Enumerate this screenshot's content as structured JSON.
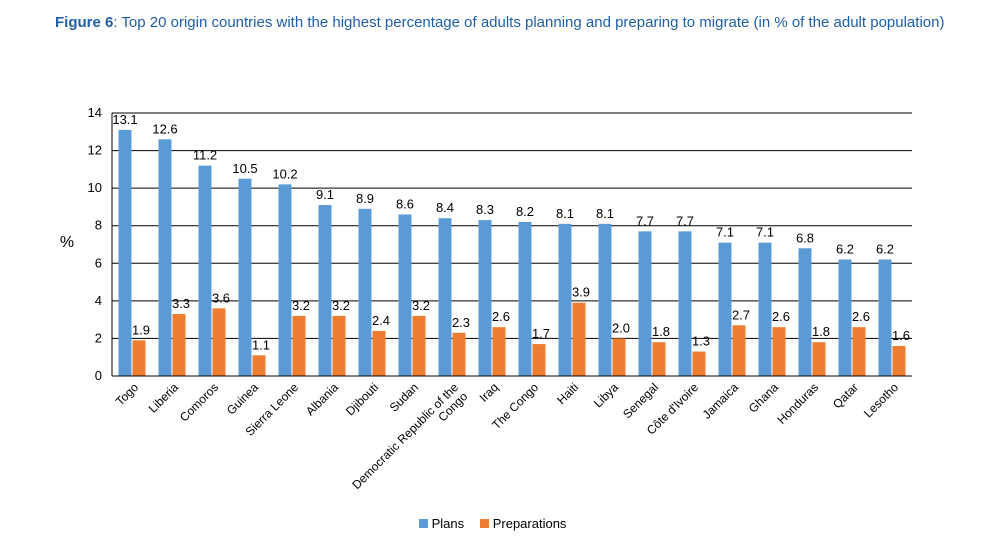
{
  "caption": {
    "lead": "Figure 6",
    "text": ": Top 20 origin countries with the highest percentage of adults planning and preparing to migrate (in % of the adult population)"
  },
  "colors": {
    "plans": "#5b9bd5",
    "preparations": "#ed7d31"
  },
  "chart_data": {
    "type": "bar",
    "ylabel": "%",
    "ylim": [
      0,
      14
    ],
    "yticks": [
      0,
      2,
      4,
      6,
      8,
      10,
      12,
      14
    ],
    "grid": true,
    "legend_position": "bottom",
    "categories": [
      "Togo",
      "Liberia",
      "Comoros",
      "Guinea",
      "Sierra Leone",
      "Albania",
      "Djibouti",
      "Sudan",
      "Democratic Republic of the Congo",
      "Iraq",
      "The Congo",
      "Haiti",
      "Libya",
      "Senegal",
      "Côte d'Ivoire",
      "Jamaica",
      "Ghana",
      "Honduras",
      "Qatar",
      "Lesotho"
    ],
    "series": [
      {
        "name": "Plans",
        "values": [
          13.1,
          12.6,
          11.2,
          10.5,
          10.2,
          9.1,
          8.9,
          8.6,
          8.4,
          8.3,
          8.2,
          8.1,
          8.1,
          7.7,
          7.7,
          7.1,
          7.1,
          6.8,
          6.2,
          6.2
        ],
        "labels": [
          "13.1",
          "12.6",
          "11.2",
          "10.5",
          "10.2",
          "9.1",
          "8.9",
          "8.6",
          "8.4",
          "8.3",
          "8.2",
          "8.1",
          "8.1",
          "7.7",
          "7.7",
          "7.1",
          "7.1",
          "6.8",
          "6.2",
          "6.2"
        ]
      },
      {
        "name": "Preparations",
        "values": [
          1.9,
          3.3,
          3.6,
          1.1,
          3.2,
          3.2,
          2.4,
          3.2,
          2.3,
          2.6,
          1.7,
          3.9,
          2.0,
          1.8,
          1.3,
          2.7,
          2.6,
          1.8,
          2.6,
          1.6
        ],
        "labels": [
          "1.9",
          "3.3",
          "3.6",
          "1.1",
          "3.2",
          "3.2",
          "2.4",
          "3.2",
          "2.3",
          "2.6",
          "1.7",
          "3.9",
          "2.0",
          "1.8",
          "1.3",
          "2.7",
          "2.6",
          "1.8",
          "2.6",
          "1.6"
        ]
      }
    ]
  }
}
